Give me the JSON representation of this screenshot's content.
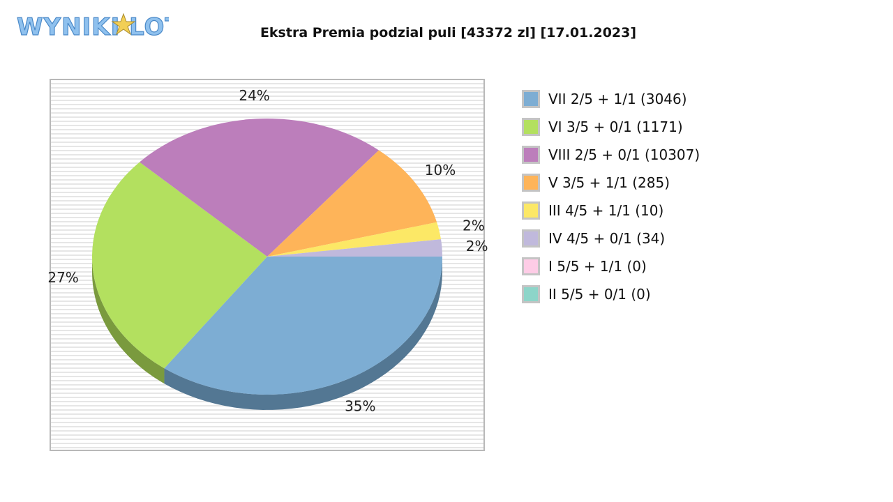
{
  "logo": {
    "text": "WYNIKI LOTTO"
  },
  "chart_data": {
    "type": "pie",
    "title": "Ekstra Premia podzial puli [43372 zl] [17.01.2023]",
    "legend_position": "right",
    "slices": [
      {
        "label": "VII 2/5 + 1/1 (3046)",
        "value": 35,
        "pct_label": "35%",
        "color": "#7dadd3",
        "side_color": "#537793"
      },
      {
        "label": "VI 3/5 + 0/1 (1171)",
        "value": 27,
        "pct_label": "27%",
        "color": "#b3e05f",
        "side_color": "#7a9a3e"
      },
      {
        "label": "VIII 2/5 + 0/1 (10307)",
        "value": 24,
        "pct_label": "24%",
        "color": "#bc7ebb",
        "side_color": "#845682"
      },
      {
        "label": "V 3/5 + 1/1 (285)",
        "value": 10,
        "pct_label": "10%",
        "color": "#feb459",
        "side_color": "#b37d3c"
      },
      {
        "label": "III 4/5 + 1/1 (10)",
        "value": 2,
        "pct_label": "2%",
        "color": "#fce866",
        "side_color": "#b0a246"
      },
      {
        "label": "IV 4/5 + 0/1 (34)",
        "value": 2,
        "pct_label": "2%",
        "color": "#c0b9dc",
        "side_color": "#86819a"
      },
      {
        "label": "I 5/5 + 1/1 (0)",
        "value": 0,
        "pct_label": "",
        "color": "#fecce6",
        "side_color": "#b28ea0"
      },
      {
        "label": "II 5/5 + 0/1 (0)",
        "value": 0,
        "pct_label": "",
        "color": "#8dd5c9",
        "side_color": "#62958c"
      }
    ]
  }
}
